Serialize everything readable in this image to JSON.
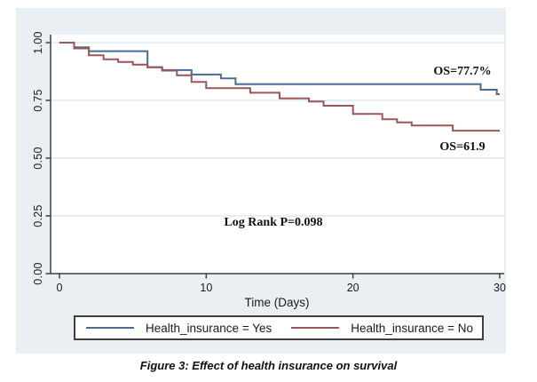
{
  "figure_caption": "Figure 3: Effect of health insurance on survival",
  "chart_data": {
    "type": "line",
    "subtype": "kaplan-meier-step",
    "title": "",
    "xlabel": "Time (Days)",
    "ylabel": "",
    "xlim": [
      0,
      30
    ],
    "ylim": [
      0,
      1.0
    ],
    "x_ticks": [
      "0",
      "10",
      "20",
      "30"
    ],
    "y_ticks": [
      "1.00",
      "0.75",
      "0.50",
      "0.25",
      "0.00"
    ],
    "grid": "horizontal-light",
    "legend_position": "bottom",
    "colors": {
      "figure_background": "#e9eff3",
      "plot_background": "#ffffff",
      "gridline": "#dfe8ef",
      "axis": "#3f3f3f",
      "text": "#1a1a1a"
    },
    "series": [
      {
        "name": "Health_insurance = Yes",
        "color": "#4a6b94",
        "final_value_label": "OS=77.7%",
        "points": [
          [
            0,
            1.0
          ],
          [
            1,
            0.98
          ],
          [
            2,
            0.963
          ],
          [
            6,
            0.894
          ],
          [
            7,
            0.881
          ],
          [
            9,
            0.862
          ],
          [
            11,
            0.845
          ],
          [
            12,
            0.82
          ],
          [
            28.7,
            0.796
          ],
          [
            29.8,
            0.777
          ],
          [
            30,
            0.777
          ]
        ]
      },
      {
        "name": "Health_insurance = No",
        "color": "#9b565b",
        "final_value_label": "OS=61.9",
        "points": [
          [
            0,
            1.0
          ],
          [
            1,
            0.975
          ],
          [
            2,
            0.945
          ],
          [
            3,
            0.928
          ],
          [
            4,
            0.916
          ],
          [
            5,
            0.905
          ],
          [
            6,
            0.893
          ],
          [
            7,
            0.879
          ],
          [
            8,
            0.859
          ],
          [
            9,
            0.83
          ],
          [
            10,
            0.803
          ],
          [
            13,
            0.783
          ],
          [
            15,
            0.759
          ],
          [
            17,
            0.745
          ],
          [
            18,
            0.727
          ],
          [
            20,
            0.691
          ],
          [
            22,
            0.668
          ],
          [
            23,
            0.655
          ],
          [
            24,
            0.641
          ],
          [
            26.8,
            0.619
          ],
          [
            30,
            0.619
          ]
        ]
      }
    ],
    "annotations": [
      {
        "text": "OS=77.7%"
      },
      {
        "text": "OS=61.9"
      },
      {
        "text": "Log Rank P=0.098"
      }
    ]
  }
}
